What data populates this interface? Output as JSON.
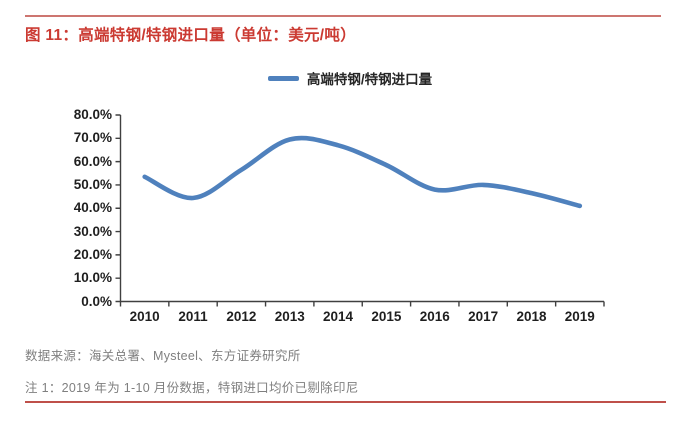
{
  "figure": {
    "title": "图 11：高端特钢/特钢进口量（单位：美元/吨）",
    "source_note": "数据来源：海关总署、Mysteel、东方证券研究所",
    "footnote": "注 1：2019 年为 1-10 月份数据，特钢进口均价已剔除印尼"
  },
  "colors": {
    "title_red": "#cb3a32",
    "rule_red_top": "#cd7570",
    "rule_red_bottom": "#bf504a",
    "line_blue": "#4f81bd",
    "axis_gray": "#404040",
    "muted_text": "#7f7f7f",
    "axis_text": "#1f1f1f"
  },
  "chart_data": {
    "type": "line",
    "smooth": true,
    "title": "高端特钢/特钢进口量",
    "categories": [
      "2010",
      "2011",
      "2012",
      "2013",
      "2014",
      "2015",
      "2016",
      "2017",
      "2018",
      "2019"
    ],
    "series": [
      {
        "name": "高端特钢/特钢进口量",
        "color": "#4f81bd",
        "values": [
          53.5,
          44.4,
          56.5,
          69.5,
          67.0,
          58.5,
          48.0,
          50.0,
          46.5,
          41.0
        ]
      }
    ],
    "xlabel": "",
    "ylabel": "",
    "ylim": [
      0,
      80
    ],
    "ytick_step": 10,
    "yticks": [
      "0.0%",
      "10.0%",
      "20.0%",
      "30.0%",
      "40.0%",
      "50.0%",
      "60.0%",
      "70.0%",
      "80.0%"
    ],
    "grid": false,
    "legend_position": "top-center"
  }
}
